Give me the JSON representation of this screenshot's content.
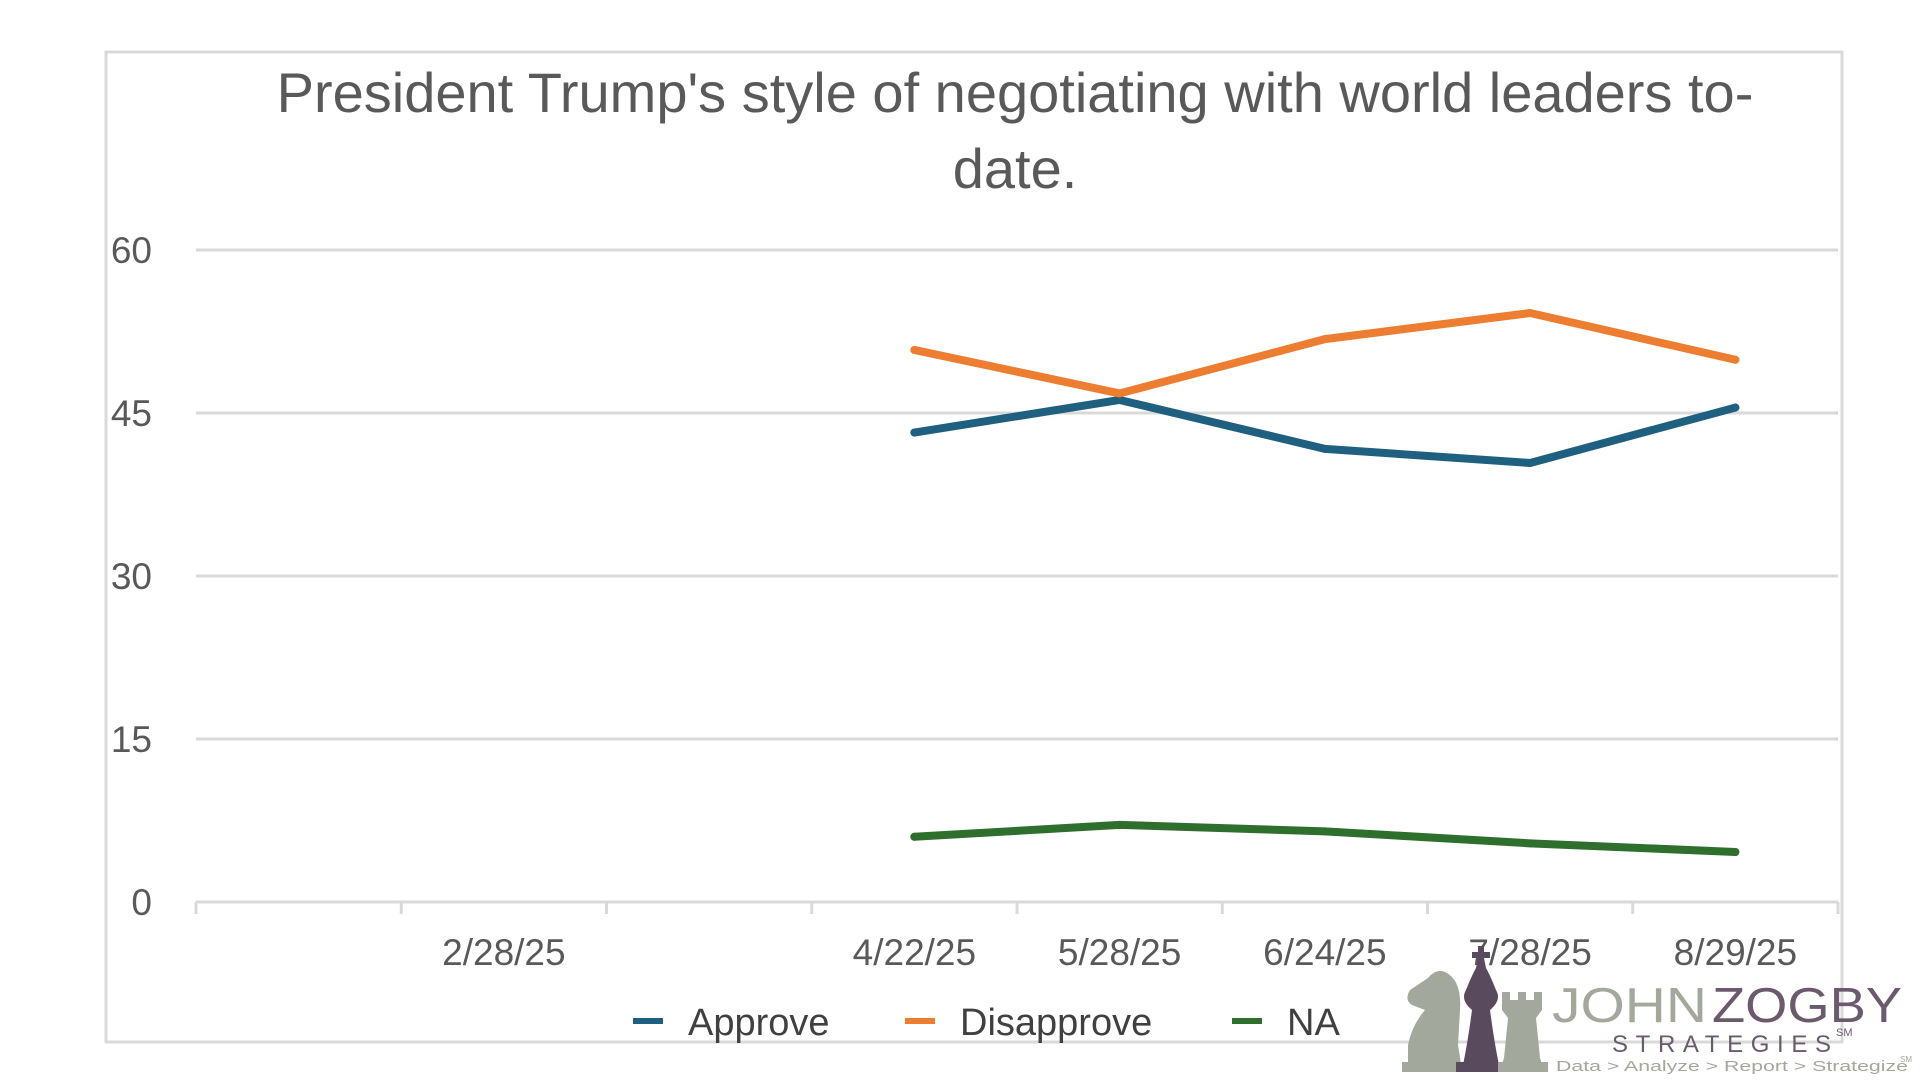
{
  "chart_data": {
    "type": "line",
    "title_lines": [
      "President Trump's style of negotiating with world leaders to-",
      "date."
    ],
    "categories": [
      "",
      "2/28/25",
      "",
      "4/22/25",
      "5/28/25",
      "6/24/25",
      "7/28/25",
      "8/29/25"
    ],
    "y_ticks": [
      "60",
      "45",
      "30",
      "15",
      "0"
    ],
    "ylim": [
      0,
      60
    ],
    "grid": true,
    "legend_position": "bottom",
    "series": [
      {
        "name": "Approve",
        "color": "#1f5f7f",
        "values": [
          null,
          null,
          null,
          43.2,
          46.2,
          41.7,
          40.4,
          45.5
        ]
      },
      {
        "name": "Disapprove",
        "color": "#ed7d31",
        "values": [
          null,
          null,
          null,
          50.8,
          46.8,
          51.8,
          54.2,
          49.9
        ]
      },
      {
        "name": "NA",
        "color": "#2e6f2e",
        "values": [
          null,
          null,
          null,
          6.0,
          7.1,
          6.5,
          5.4,
          4.6
        ]
      }
    ]
  },
  "logo": {
    "name_left": "JOHN",
    "name_right": "ZOGBY",
    "sm_mark": "SM",
    "subtitle": "STRATEGIES",
    "tagline": "Data > Analyze > Report > Strategize",
    "tagline_mark": "SM"
  }
}
